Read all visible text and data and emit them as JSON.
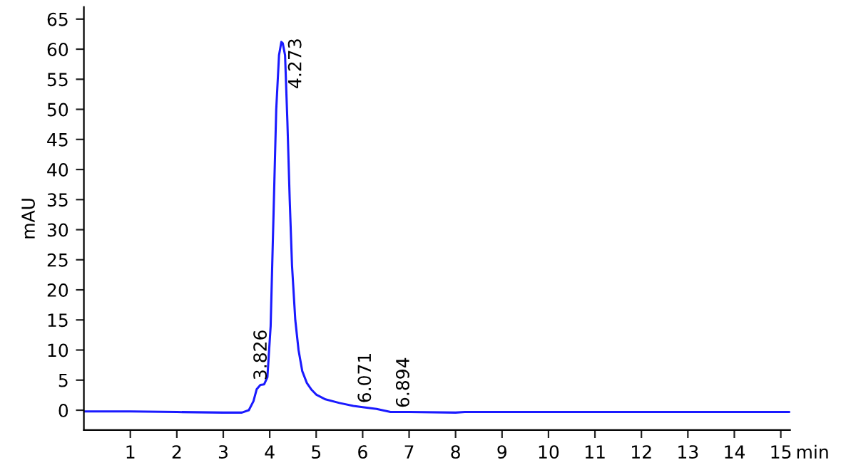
{
  "chart_data": {
    "type": "line",
    "xlabel": "min",
    "ylabel": "mAU",
    "x": [
      0,
      1,
      2,
      3,
      3.4,
      3.55,
      3.65,
      3.72,
      3.8,
      3.88,
      3.95,
      4.02,
      4.08,
      4.14,
      4.2,
      4.25,
      4.28,
      4.33,
      4.38,
      4.43,
      4.48,
      4.55,
      4.62,
      4.7,
      4.8,
      4.9,
      5.0,
      5.2,
      5.5,
      5.8,
      6.0,
      6.3,
      6.6,
      7.0,
      8.0,
      8.2,
      10,
      12,
      15.2
    ],
    "series": [
      {
        "color": "#1a1aff",
        "values": [
          -0.2,
          -0.2,
          -0.3,
          -0.4,
          -0.4,
          0,
          1.5,
          3.5,
          4.2,
          4.3,
          5.5,
          14,
          32,
          50,
          59,
          61.2,
          61,
          59,
          48,
          35,
          24,
          15,
          10,
          6.5,
          4.5,
          3.4,
          2.6,
          1.8,
          1.2,
          0.7,
          0.5,
          0.2,
          -0.3,
          -0.3,
          -0.4,
          -0.3,
          -0.3,
          -0.3,
          -0.3
        ]
      }
    ],
    "annotations": [
      {
        "text": "3.826",
        "x": 3.826,
        "y": 4.3
      },
      {
        "text": "4.273",
        "x": 4.273,
        "y": 61.2
      },
      {
        "text": "6.071",
        "x": 6.071,
        "y": 0.5
      },
      {
        "text": "6.894",
        "x": 6.894,
        "y": -0.3
      }
    ],
    "xlim": [
      0,
      15.2
    ],
    "ylim": [
      -3.3,
      67
    ],
    "xticks": [
      1,
      2,
      3,
      4,
      5,
      6,
      7,
      8,
      9,
      10,
      11,
      12,
      13,
      14,
      15
    ],
    "yticks": [
      0,
      5,
      10,
      15,
      20,
      25,
      30,
      35,
      40,
      45,
      50,
      55,
      60,
      65
    ],
    "grid": false,
    "legend": false,
    "marker": "none",
    "line_style": "solid"
  }
}
